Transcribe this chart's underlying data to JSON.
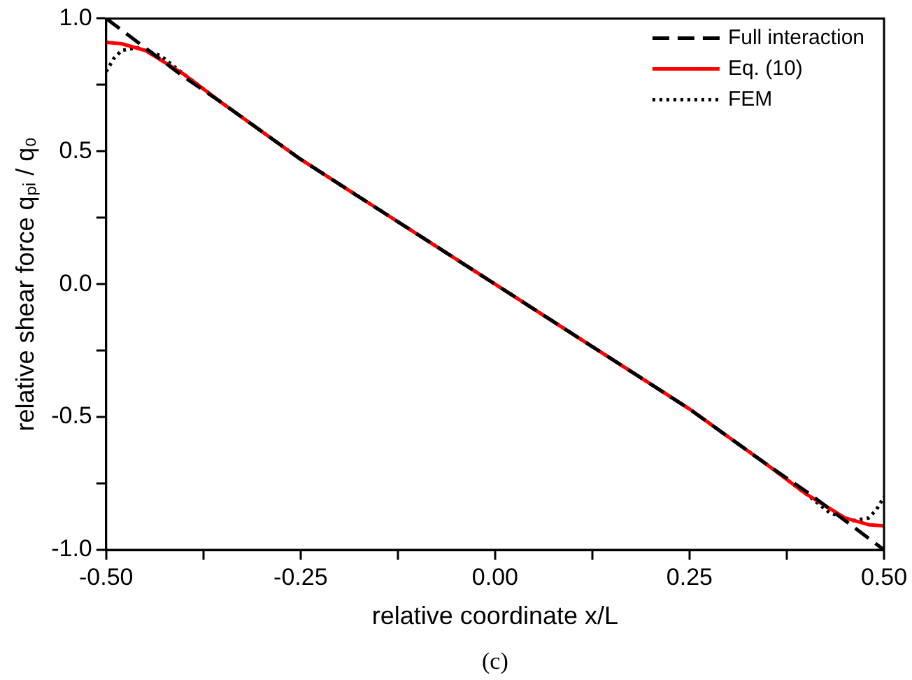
{
  "chart_data": {
    "type": "line",
    "xlabel": "relative coordinate x/L",
    "ylabel": "relative shear force qₚᵢ / q₀",
    "annotations": [
      "(c)"
    ],
    "xlim": [
      -0.5,
      0.5
    ],
    "xticks": [
      {
        "value": -0.5,
        "label": "-0.50"
      },
      {
        "value": -0.375,
        "label": null
      },
      {
        "value": -0.25,
        "label": "-0.25"
      },
      {
        "value": -0.125,
        "label": null
      },
      {
        "value": 0,
        "label": "0.00"
      },
      {
        "value": 0.125,
        "label": null
      },
      {
        "value": 0.25,
        "label": "0.25"
      },
      {
        "value": 0.375,
        "label": null
      },
      {
        "value": 0.5,
        "label": "0.50"
      }
    ],
    "ylim": [
      -1,
      1
    ],
    "yticks": [
      {
        "value": -1,
        "label": "-1.0"
      },
      {
        "value": -0.75,
        "label": null
      },
      {
        "value": -0.5,
        "label": "-0.5"
      },
      {
        "value": -0.25,
        "label": null
      },
      {
        "value": 0,
        "label": "0.0"
      },
      {
        "value": 0.25,
        "label": null
      },
      {
        "value": 0.5,
        "label": "0.5"
      },
      {
        "value": 0.75,
        "label": null
      },
      {
        "value": 1,
        "label": "1.0"
      }
    ],
    "grid": false,
    "legend": "top right",
    "marker": "none",
    "series": [
      {
        "name": "Full interaction",
        "color": "#000000",
        "line_style": "dashed",
        "x": [
          -0.5,
          -0.45,
          -0.4,
          -0.35,
          -0.25,
          0,
          0.25,
          0.35,
          0.4,
          0.45,
          0.5
        ],
        "values": [
          1.0,
          0.89,
          0.78,
          0.68,
          0.47,
          0,
          -0.47,
          -0.68,
          -0.78,
          -0.89,
          -1.0
        ]
      },
      {
        "name": "Eq. (10)",
        "color": "#ff0000",
        "line_style": "solid",
        "x": [
          -0.5,
          -0.48,
          -0.45,
          -0.4,
          -0.35,
          -0.25,
          0,
          0.25,
          0.35,
          0.4,
          0.45,
          0.48,
          0.5
        ],
        "values": [
          0.91,
          0.905,
          0.88,
          0.79,
          0.68,
          0.47,
          0,
          -0.47,
          -0.68,
          -0.79,
          -0.88,
          -0.905,
          -0.91
        ]
      },
      {
        "name": "FEM",
        "color": "#000000",
        "line_style": "dotted",
        "x": [
          -0.5,
          -0.49,
          -0.48,
          -0.46,
          -0.43,
          -0.4,
          -0.35,
          -0.25,
          0,
          0.25,
          0.35,
          0.4,
          0.43,
          0.46,
          0.48,
          0.49,
          0.5
        ],
        "values": [
          0.8,
          0.85,
          0.88,
          0.89,
          0.86,
          0.79,
          0.68,
          0.47,
          0,
          -0.47,
          -0.68,
          -0.79,
          -0.86,
          -0.89,
          -0.88,
          -0.85,
          -0.8
        ]
      }
    ]
  }
}
